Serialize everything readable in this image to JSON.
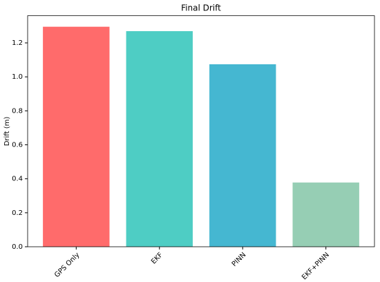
{
  "chart_data": {
    "type": "bar",
    "title": "Final Drift",
    "y_label": "Drift (m)",
    "categories": [
      "GPS Only",
      "EKF",
      "PINN",
      "EKF+PINN"
    ],
    "values": [
      1.295,
      1.269,
      1.074,
      0.378
    ],
    "colors": [
      "#ff6b6b",
      "#4ecdc4",
      "#45b7d1",
      "#96ceb4"
    ],
    "ylim": [
      0,
      1.36
    ],
    "yticks": [
      {
        "value": 0,
        "label": "0.0"
      },
      0.2,
      0.4,
      0.6,
      0.8,
      {
        "value": 1,
        "label": "1.0"
      },
      1.2
    ],
    "grid": false
  }
}
